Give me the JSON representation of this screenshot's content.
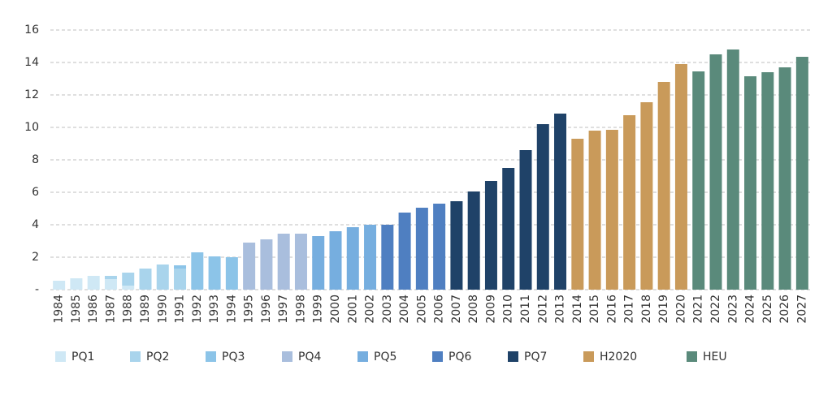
{
  "chart_data": {
    "type": "stacked_bar",
    "categories": [
      "1984",
      "1985",
      "1986",
      "1987",
      "1988",
      "1989",
      "1990",
      "1991",
      "1992",
      "1993",
      "1994",
      "1995",
      "1996",
      "1997",
      "1998",
      "1999",
      "2000",
      "2001",
      "2002",
      "2003",
      "2004",
      "2005",
      "2006",
      "2007",
      "2008",
      "2009",
      "2010",
      "2011",
      "2012",
      "2013",
      "2014",
      "2015",
      "2016",
      "2017",
      "2018",
      "2019",
      "2020",
      "2021",
      "2022",
      "2023",
      "2024",
      "2025",
      "2026",
      "2027"
    ],
    "series": [
      {
        "name": "PQ1",
        "color": "#cfe8f5",
        "values": [
          0.55,
          0.7,
          0.85,
          0.65,
          0.25,
          null,
          null,
          null,
          null,
          null,
          null,
          null,
          null,
          null,
          null,
          null,
          null,
          null,
          null,
          null,
          null,
          null,
          null,
          null,
          null,
          null,
          null,
          null,
          null,
          null,
          null,
          null,
          null,
          null,
          null,
          null,
          null,
          null,
          null,
          null,
          null,
          null,
          null,
          null
        ]
      },
      {
        "name": "PQ2",
        "color": "#a9d4ec",
        "values": [
          null,
          null,
          null,
          0.2,
          0.8,
          1.3,
          1.55,
          1.3,
          null,
          null,
          null,
          null,
          null,
          null,
          null,
          null,
          null,
          null,
          null,
          null,
          null,
          null,
          null,
          null,
          null,
          null,
          null,
          null,
          null,
          null,
          null,
          null,
          null,
          null,
          null,
          null,
          null,
          null,
          null,
          null,
          null,
          null,
          null,
          null
        ]
      },
      {
        "name": "PQ3",
        "color": "#8cc4e8",
        "values": [
          null,
          null,
          null,
          null,
          null,
          null,
          null,
          0.2,
          2.3,
          2.05,
          2.0,
          null,
          null,
          null,
          null,
          null,
          null,
          null,
          null,
          null,
          null,
          null,
          null,
          null,
          null,
          null,
          null,
          null,
          null,
          null,
          null,
          null,
          null,
          null,
          null,
          null,
          null,
          null,
          null,
          null,
          null,
          null,
          null,
          null
        ]
      },
      {
        "name": "PQ4",
        "color": "#a9bedd",
        "values": [
          null,
          null,
          null,
          null,
          null,
          null,
          null,
          null,
          null,
          null,
          null,
          2.9,
          3.1,
          3.45,
          3.45,
          null,
          null,
          null,
          null,
          null,
          null,
          null,
          null,
          null,
          null,
          null,
          null,
          null,
          null,
          null,
          null,
          null,
          null,
          null,
          null,
          null,
          null,
          null,
          null,
          null,
          null,
          null,
          null,
          null
        ]
      },
      {
        "name": "PQ5",
        "color": "#76aedf",
        "values": [
          null,
          null,
          null,
          null,
          null,
          null,
          null,
          null,
          null,
          null,
          null,
          null,
          null,
          null,
          null,
          3.3,
          3.6,
          3.85,
          4.0,
          null,
          null,
          null,
          null,
          null,
          null,
          null,
          null,
          null,
          null,
          null,
          null,
          null,
          null,
          null,
          null,
          null,
          null,
          null,
          null,
          null,
          null,
          null,
          null,
          null
        ]
      },
      {
        "name": "PQ6",
        "color": "#4f7fc1",
        "values": [
          null,
          null,
          null,
          null,
          null,
          null,
          null,
          null,
          null,
          null,
          null,
          null,
          null,
          null,
          null,
          null,
          null,
          null,
          null,
          4.0,
          4.75,
          5.05,
          5.3,
          null,
          null,
          null,
          null,
          null,
          null,
          null,
          null,
          null,
          null,
          null,
          null,
          null,
          null,
          null,
          null,
          null,
          null,
          null,
          null,
          null
        ]
      },
      {
        "name": "PQ7",
        "color": "#1f4268",
        "values": [
          null,
          null,
          null,
          null,
          null,
          null,
          null,
          null,
          null,
          null,
          null,
          null,
          null,
          null,
          null,
          null,
          null,
          null,
          null,
          null,
          null,
          null,
          null,
          5.45,
          6.05,
          6.7,
          7.5,
          8.6,
          10.2,
          10.85,
          null,
          null,
          null,
          null,
          null,
          null,
          null,
          null,
          null,
          null,
          null,
          null,
          null,
          null
        ]
      },
      {
        "name": "H2020",
        "color": "#c99a5a",
        "values": [
          null,
          null,
          null,
          null,
          null,
          null,
          null,
          null,
          null,
          null,
          null,
          null,
          null,
          null,
          null,
          null,
          null,
          null,
          null,
          null,
          null,
          null,
          null,
          null,
          null,
          null,
          null,
          null,
          null,
          null,
          9.3,
          9.8,
          9.85,
          10.75,
          11.55,
          12.8,
          13.9,
          null,
          null,
          null,
          null,
          null,
          null,
          null
        ]
      },
      {
        "name": "HEU",
        "color": "#5a8a7b",
        "values": [
          null,
          null,
          null,
          null,
          null,
          null,
          null,
          null,
          null,
          null,
          null,
          null,
          null,
          null,
          null,
          null,
          null,
          null,
          null,
          null,
          null,
          null,
          null,
          null,
          null,
          null,
          null,
          null,
          null,
          null,
          null,
          null,
          null,
          null,
          null,
          null,
          null,
          13.45,
          14.5,
          14.8,
          13.15,
          13.4,
          13.7,
          14.35
        ]
      }
    ],
    "ylim": [
      0,
      16
    ],
    "yticks": [
      {
        "value": 0,
        "label": "-"
      },
      2,
      4,
      6,
      8,
      10,
      12,
      14,
      16
    ],
    "grid": true
  }
}
